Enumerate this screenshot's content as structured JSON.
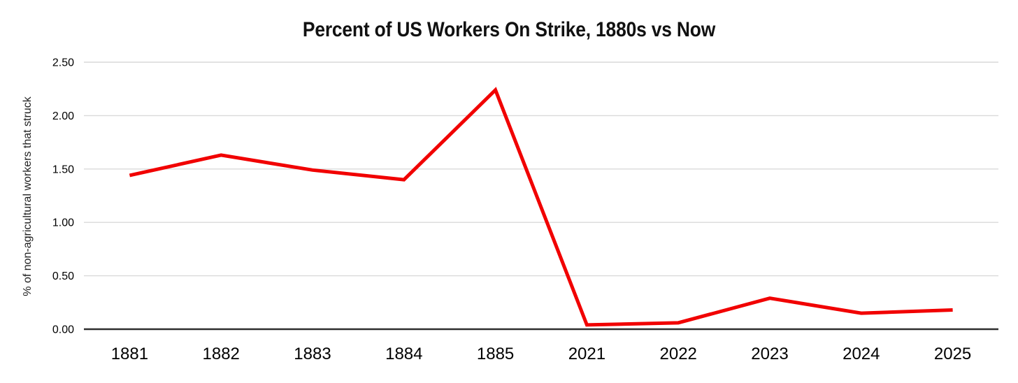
{
  "page": {
    "background_color": "#ffffff"
  },
  "chart_data": {
    "type": "line",
    "title": "Percent of US Workers On Strike, 1880s vs Now",
    "xlabel": "",
    "ylabel": "% of non-agricultural workers that struck",
    "categories": [
      "1881",
      "1882",
      "1883",
      "1884",
      "1885",
      "2021",
      "2022",
      "2023",
      "2024",
      "2025"
    ],
    "values": [
      1.44,
      1.63,
      1.49,
      1.4,
      2.24,
      0.04,
      0.06,
      0.29,
      0.15,
      0.18
    ],
    "ylim": [
      0,
      2.5
    ],
    "y_ticks": [
      "0.00",
      "0.50",
      "1.00",
      "1.50",
      "2.00",
      "2.50"
    ],
    "grid": true,
    "legend_position": "none",
    "line_color": "#f10000",
    "grid_color": "#d9d9d9",
    "axis_color": "#2e2e2e",
    "tick_text_color": "#000000",
    "title_color": "#111111"
  }
}
